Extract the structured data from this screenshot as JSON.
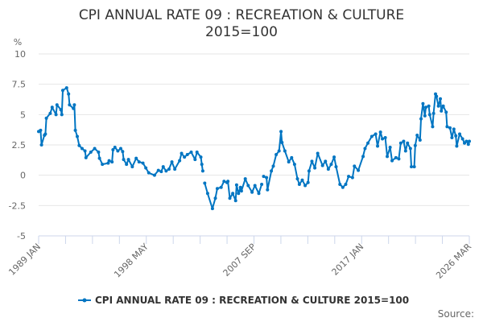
{
  "chart_data": {
    "type": "line",
    "title": "CPI ANNUAL RATE 09 : RECREATION & CULTURE",
    "subtitle": "2015=100",
    "ylabel": "%",
    "xlabel": "",
    "ylim": [
      -5,
      10
    ],
    "yticks": [
      "10",
      "7.5",
      "5",
      "2.5",
      "0",
      "-2.5",
      "-5"
    ],
    "xlim": [
      "1989-01",
      "2026-03"
    ],
    "xticks": [
      "1989 JAN",
      "1998 MAY",
      "2007 SEP",
      "2017 JAN",
      "2026 MAR"
    ],
    "grid": true,
    "legend_position": "bottom",
    "source_label": "Source:",
    "series": [
      {
        "name": "CPI ANNUAL RATE 09 : RECREATION & CULTURE 2015=100",
        "color": "#0075c2",
        "markers": true,
        "points": [
          [
            "1989-01",
            3.6
          ],
          [
            "1989-03",
            3.7
          ],
          [
            "1989-04",
            2.5
          ],
          [
            "1989-07",
            3.3
          ],
          [
            "1989-08",
            3.4
          ],
          [
            "1989-09",
            4.7
          ],
          [
            "1990-01",
            5.1
          ],
          [
            "1990-03",
            5.6
          ],
          [
            "1990-07",
            5.0
          ],
          [
            "1990-08",
            5.8
          ],
          [
            "1990-12",
            5.4
          ],
          [
            "1991-01",
            5.0
          ],
          [
            "1991-02",
            7.0
          ],
          [
            "1991-06",
            7.2
          ],
          [
            "1991-08",
            6.7
          ],
          [
            "1991-09",
            5.8
          ],
          [
            "1992-01",
            5.5
          ],
          [
            "1992-02",
            5.8
          ],
          [
            "1992-03",
            3.7
          ],
          [
            "1992-05",
            3.2
          ],
          [
            "1992-07",
            2.45
          ],
          [
            "1992-10",
            2.2
          ],
          [
            "1993-01",
            2.0
          ],
          [
            "1993-02",
            1.45
          ],
          [
            "1993-07",
            1.9
          ],
          [
            "1993-11",
            2.2
          ],
          [
            "1994-03",
            1.9
          ],
          [
            "1994-04",
            1.4
          ],
          [
            "1994-07",
            0.9
          ],
          [
            "1995-01",
            1.0
          ],
          [
            "1995-02",
            1.2
          ],
          [
            "1995-05",
            1.1
          ],
          [
            "1995-06",
            2.1
          ],
          [
            "1995-08",
            2.3
          ],
          [
            "1995-11",
            2.0
          ],
          [
            "1996-02",
            2.2
          ],
          [
            "1996-04",
            1.95
          ],
          [
            "1996-05",
            1.3
          ],
          [
            "1996-08",
            0.9
          ],
          [
            "1996-10",
            1.3
          ],
          [
            "1997-02",
            0.7
          ],
          [
            "1997-06",
            1.4
          ],
          [
            "1997-09",
            1.1
          ],
          [
            "1998-01",
            1.0
          ],
          [
            "1998-04",
            0.6
          ],
          [
            "1998-07",
            0.2
          ],
          [
            "1999-01",
            0.0
          ],
          [
            "1999-05",
            0.4
          ],
          [
            "1999-08",
            0.3
          ],
          [
            "1999-10",
            0.7
          ],
          [
            "2000-01",
            0.35
          ],
          [
            "2000-04",
            0.5
          ],
          [
            "2000-07",
            1.1
          ],
          [
            "2000-10",
            0.5
          ],
          [
            "2001-03",
            1.2
          ],
          [
            "2001-05",
            1.8
          ],
          [
            "2001-08",
            1.5
          ],
          [
            "2001-11",
            1.7
          ],
          [
            "2002-03",
            1.9
          ],
          [
            "2002-07",
            1.3
          ],
          [
            "2002-09",
            1.9
          ],
          [
            "2003-01",
            1.5
          ],
          [
            "2003-02",
            0.9
          ],
          [
            "2003-03",
            0.35
          ],
          [
            "2003-04",
            null
          ],
          [
            "2003-05",
            -0.65
          ],
          [
            "2003-08",
            -1.5
          ],
          [
            "2004-01",
            -2.75
          ],
          [
            "2004-04",
            -1.9
          ],
          [
            "2004-06",
            -1.1
          ],
          [
            "2004-10",
            -1.0
          ],
          [
            "2005-01",
            -0.5
          ],
          [
            "2005-04",
            -0.6
          ],
          [
            "2005-05",
            -0.5
          ],
          [
            "2005-07",
            -1.9
          ],
          [
            "2005-10",
            -1.5
          ],
          [
            "2006-01",
            -2.1
          ],
          [
            "2006-02",
            -0.8
          ],
          [
            "2006-04",
            -1.5
          ],
          [
            "2006-06",
            -1.0
          ],
          [
            "2006-07",
            -1.3
          ],
          [
            "2006-11",
            -0.3
          ],
          [
            "2007-02",
            -0.85
          ],
          [
            "2007-06",
            -1.4
          ],
          [
            "2007-09",
            -0.85
          ],
          [
            "2008-01",
            -1.5
          ],
          [
            "2008-04",
            -0.75
          ],
          [
            "2008-05",
            null
          ],
          [
            "2008-06",
            -0.1
          ],
          [
            "2008-09",
            -0.2
          ],
          [
            "2008-10",
            -1.2
          ],
          [
            "2009-02",
            0.35
          ],
          [
            "2009-04",
            0.75
          ],
          [
            "2009-07",
            1.7
          ],
          [
            "2009-10",
            2.0
          ],
          [
            "2009-12",
            3.6
          ],
          [
            "2010-01",
            2.7
          ],
          [
            "2010-04",
            2.0
          ],
          [
            "2010-08",
            1.1
          ],
          [
            "2010-11",
            1.45
          ],
          [
            "2011-02",
            0.9
          ],
          [
            "2011-05",
            -0.3
          ],
          [
            "2011-07",
            -0.75
          ],
          [
            "2011-10",
            -0.4
          ],
          [
            "2012-01",
            -0.85
          ],
          [
            "2012-04",
            -0.6
          ],
          [
            "2012-05",
            0.35
          ],
          [
            "2012-08",
            1.15
          ],
          [
            "2012-11",
            0.6
          ],
          [
            "2013-02",
            1.8
          ],
          [
            "2013-07",
            0.8
          ],
          [
            "2013-10",
            1.15
          ],
          [
            "2014-01",
            0.5
          ],
          [
            "2014-04",
            0.9
          ],
          [
            "2014-07",
            1.5
          ],
          [
            "2014-09",
            0.7
          ],
          [
            "2015-01",
            -0.75
          ],
          [
            "2015-04",
            -1.0
          ],
          [
            "2015-07",
            -0.75
          ],
          [
            "2015-10",
            -0.1
          ],
          [
            "2016-02",
            -0.2
          ],
          [
            "2016-04",
            0.75
          ],
          [
            "2016-08",
            0.4
          ],
          [
            "2017-01",
            1.55
          ],
          [
            "2017-03",
            2.2
          ],
          [
            "2017-06",
            2.65
          ],
          [
            "2017-10",
            3.2
          ],
          [
            "2018-02",
            3.4
          ],
          [
            "2018-04",
            2.4
          ],
          [
            "2018-07",
            3.55
          ],
          [
            "2018-09",
            3.0
          ],
          [
            "2018-12",
            3.1
          ],
          [
            "2019-02",
            1.55
          ],
          [
            "2019-05",
            2.3
          ],
          [
            "2019-07",
            1.2
          ],
          [
            "2019-11",
            1.45
          ],
          [
            "2020-02",
            1.35
          ],
          [
            "2020-04",
            2.65
          ],
          [
            "2020-07",
            2.8
          ],
          [
            "2020-09",
            2.0
          ],
          [
            "2020-11",
            2.65
          ],
          [
            "2021-02",
            2.2
          ],
          [
            "2021-03",
            0.7
          ],
          [
            "2021-06",
            0.7
          ],
          [
            "2021-07",
            2.45
          ],
          [
            "2021-09",
            3.3
          ],
          [
            "2021-12",
            2.9
          ],
          [
            "2022-01",
            4.65
          ],
          [
            "2022-03",
            5.9
          ],
          [
            "2022-05",
            4.9
          ],
          [
            "2022-06",
            5.6
          ],
          [
            "2022-09",
            5.7
          ],
          [
            "2022-10",
            5.0
          ],
          [
            "2023-01",
            4.0
          ],
          [
            "2023-02",
            5.1
          ],
          [
            "2023-04",
            6.7
          ],
          [
            "2023-05",
            6.5
          ],
          [
            "2023-07",
            5.7
          ],
          [
            "2023-09",
            6.3
          ],
          [
            "2023-10",
            5.3
          ],
          [
            "2023-12",
            5.7
          ],
          [
            "2024-03",
            5.2
          ],
          [
            "2024-04",
            4.0
          ],
          [
            "2024-07",
            3.9
          ],
          [
            "2024-09",
            3.1
          ],
          [
            "2024-11",
            3.8
          ],
          [
            "2025-01",
            3.25
          ],
          [
            "2025-02",
            2.4
          ],
          [
            "2025-05",
            3.4
          ],
          [
            "2025-08",
            3.0
          ],
          [
            "2025-10",
            2.65
          ],
          [
            "2025-12",
            2.8
          ],
          [
            "2026-02",
            2.55
          ],
          [
            "2026-03",
            2.8
          ]
        ]
      }
    ]
  }
}
